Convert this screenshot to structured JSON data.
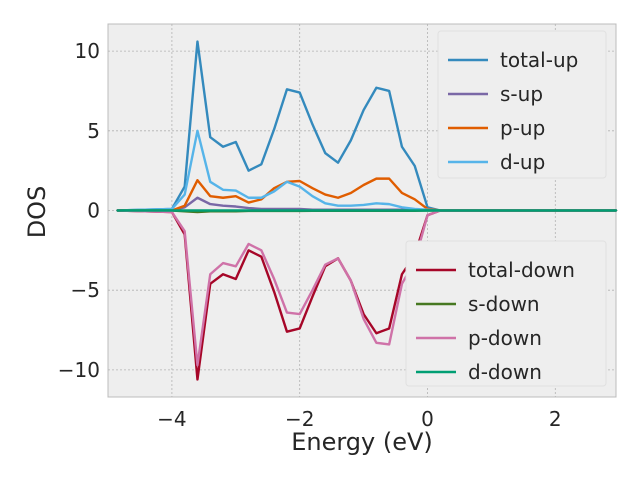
{
  "chart_data": {
    "type": "line",
    "xlabel": "Energy (eV)",
    "ylabel": "DOS",
    "xlim": [
      -5.0,
      2.95
    ],
    "ylim": [
      -11.7,
      11.7
    ],
    "xticks": [
      -4,
      -2,
      0,
      2
    ],
    "yticks": [
      -10,
      -5,
      0,
      5,
      10
    ],
    "xtick_labels": [
      "−4",
      "−2",
      "0",
      "2"
    ],
    "ytick_labels": [
      "−10",
      "−5",
      "0",
      "5",
      "10"
    ],
    "grid": true,
    "legends": [
      {
        "placement": "top-right",
        "entries": [
          "total-up",
          "s-up",
          "p-up",
          "d-up"
        ]
      },
      {
        "placement": "bottom-right",
        "entries": [
          "total-down",
          "s-down",
          "p-down",
          "d-down"
        ]
      }
    ],
    "series": [
      {
        "name": "total-up",
        "color": "#348abd",
        "x": [
          -4.85,
          -4.0,
          -3.8,
          -3.6,
          -3.4,
          -3.2,
          -3.0,
          -2.8,
          -2.6,
          -2.4,
          -2.2,
          -2.0,
          -1.8,
          -1.6,
          -1.4,
          -1.2,
          -1.0,
          -0.8,
          -0.6,
          -0.4,
          -0.2,
          0.0,
          0.2,
          2.95
        ],
        "y": [
          0,
          0.1,
          1.5,
          10.6,
          4.6,
          4.0,
          4.3,
          2.5,
          2.9,
          5.1,
          7.6,
          7.4,
          5.4,
          3.6,
          3.0,
          4.4,
          6.3,
          7.7,
          7.5,
          4.0,
          2.8,
          0.2,
          0,
          0
        ]
      },
      {
        "name": "s-up",
        "color": "#7a68a6",
        "x": [
          -4.85,
          -4.0,
          -3.8,
          -3.6,
          -3.4,
          -3.2,
          -3.0,
          -2.8,
          -2.6,
          -2.4,
          -2.2,
          -2.0,
          -1.8,
          -1.6,
          -1.4,
          -1.2,
          -1.0,
          -0.8,
          -0.6,
          -0.4,
          -0.2,
          0.0,
          0.2,
          2.95
        ],
        "y": [
          0,
          0,
          0.2,
          0.8,
          0.4,
          0.3,
          0.25,
          0.15,
          0.1,
          0.1,
          0.1,
          0.1,
          0.05,
          0.05,
          0.05,
          0.05,
          0.05,
          0.05,
          0.05,
          0.05,
          0.05,
          0.02,
          0,
          0
        ]
      },
      {
        "name": "p-up",
        "color": "#e05d00",
        "x": [
          -4.85,
          -4.0,
          -3.8,
          -3.6,
          -3.4,
          -3.2,
          -3.0,
          -2.8,
          -2.6,
          -2.4,
          -2.2,
          -2.0,
          -1.8,
          -1.6,
          -1.4,
          -1.2,
          -1.0,
          -0.8,
          -0.6,
          -0.4,
          -0.2,
          0.0,
          0.2,
          2.95
        ],
        "y": [
          0,
          0,
          0.3,
          1.9,
          0.9,
          0.8,
          0.9,
          0.5,
          0.7,
          1.4,
          1.8,
          1.85,
          1.4,
          1.0,
          0.8,
          1.1,
          1.6,
          2.0,
          2.0,
          1.1,
          0.7,
          0.1,
          0,
          0
        ]
      },
      {
        "name": "d-up",
        "color": "#56b4e9",
        "x": [
          -4.85,
          -4.0,
          -3.8,
          -3.6,
          -3.4,
          -3.2,
          -3.0,
          -2.8,
          -2.6,
          -2.4,
          -2.2,
          -2.0,
          -1.8,
          -1.6,
          -1.4,
          -1.2,
          -1.0,
          -0.8,
          -0.6,
          -0.4,
          -0.2,
          0.0,
          0.2,
          2.95
        ],
        "y": [
          0,
          0.1,
          1.0,
          5.0,
          1.8,
          1.3,
          1.25,
          0.8,
          0.8,
          1.2,
          1.8,
          1.5,
          0.9,
          0.45,
          0.3,
          0.3,
          0.35,
          0.45,
          0.4,
          0.2,
          0.1,
          0.05,
          0,
          0
        ]
      },
      {
        "name": "total-down",
        "color": "#a60628",
        "x": [
          -4.85,
          -4.0,
          -3.8,
          -3.6,
          -3.4,
          -3.2,
          -3.0,
          -2.8,
          -2.6,
          -2.4,
          -2.2,
          -2.0,
          -1.8,
          -1.6,
          -1.4,
          -1.2,
          -1.0,
          -0.8,
          -0.6,
          -0.4,
          -0.2,
          0.0,
          0.2,
          2.95
        ],
        "y": [
          0,
          -0.1,
          -1.5,
          -10.6,
          -4.6,
          -4.0,
          -4.3,
          -2.5,
          -2.9,
          -5.1,
          -7.6,
          -7.4,
          -5.4,
          -3.5,
          -3.0,
          -4.4,
          -6.5,
          -7.7,
          -7.4,
          -4.0,
          -2.8,
          -0.3,
          0,
          0
        ]
      },
      {
        "name": "s-down",
        "color": "#467821",
        "x": [
          -4.85,
          -4.0,
          -3.8,
          -3.6,
          -3.4,
          -3.2,
          -3.0,
          -2.8,
          -2.6,
          -2.4,
          -2.2,
          -2.0,
          -1.8,
          -1.6,
          -1.4,
          -1.2,
          -1.0,
          -0.8,
          -0.6,
          -0.4,
          -0.2,
          0.0,
          0.2,
          2.95
        ],
        "y": [
          0,
          0,
          -0.05,
          -0.1,
          -0.05,
          -0.05,
          -0.05,
          -0.03,
          -0.03,
          -0.03,
          -0.03,
          -0.03,
          -0.02,
          -0.02,
          -0.02,
          -0.02,
          -0.02,
          -0.02,
          -0.02,
          -0.02,
          -0.02,
          0,
          0,
          0
        ]
      },
      {
        "name": "p-down",
        "color": "#cf4457",
        "x": [
          -4.85,
          -4.0,
          -3.8,
          -3.6,
          -3.4,
          -3.2,
          -3.0,
          -2.8,
          -2.6,
          -2.4,
          -2.2,
          -2.0,
          -1.8,
          -1.6,
          -1.4,
          -1.2,
          -1.0,
          -0.8,
          -0.6,
          -0.4,
          -0.2,
          0.0,
          0.2,
          2.95
        ],
        "y": [
          0,
          -0.1,
          -1.3,
          -9.7,
          -4.0,
          -3.3,
          -3.5,
          -2.1,
          -2.5,
          -4.3,
          -6.4,
          -6.5,
          -5.0,
          -3.4,
          -3.0,
          -4.4,
          -6.8,
          -8.3,
          -8.4,
          -4.6,
          -3.2,
          -0.3,
          0,
          0
        ]
      },
      {
        "name": "d-down",
        "color": "#188487",
        "x": [
          -4.85,
          -4.0,
          -3.8,
          -3.6,
          -3.4,
          -3.2,
          -3.0,
          -2.8,
          -2.6,
          -2.4,
          -2.2,
          -2.0,
          -1.8,
          -1.6,
          -1.4,
          -1.2,
          -1.0,
          -0.8,
          -0.6,
          -0.4,
          -0.2,
          0.0,
          0.2,
          2.95
        ],
        "y": [
          0,
          0,
          0,
          0,
          0,
          0,
          0,
          0,
          0,
          0,
          0,
          0,
          0,
          0,
          0,
          0,
          0,
          0,
          0,
          0,
          0,
          0,
          0,
          0
        ]
      }
    ]
  },
  "colors": {
    "axes_background": "#eeeeee",
    "grid": "#b2b2b2",
    "total_up": "#348abd",
    "s_up": "#7a68a6",
    "p_up": "#e05d00",
    "d_up": "#56b4e9",
    "total_down": "#a60628",
    "s_down": "#467821",
    "p_down": "#cf72a8",
    "d_down": "#009e73"
  }
}
